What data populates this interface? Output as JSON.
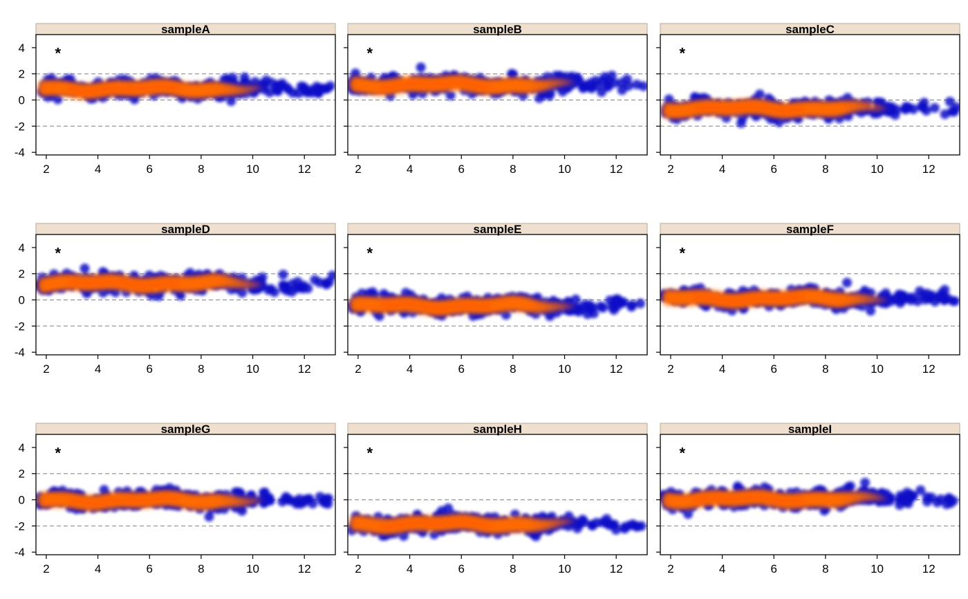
{
  "chart_data": {
    "type": "scatter",
    "subtype": "smoothed-density-scatter (MA-plot style), 3x3 lattice panels",
    "title": "",
    "xlabel": "",
    "ylabel": "",
    "xlim": [
      1.6,
      13.2
    ],
    "ylim": [
      -4.2,
      5.0
    ],
    "x_ticks": [
      2,
      4,
      6,
      8,
      10,
      12
    ],
    "y_ticks": [
      -4,
      -2,
      0,
      2,
      4
    ],
    "reference_lines": [
      -2,
      0,
      2
    ],
    "reference_line_style": "dashed grey",
    "marker": "*",
    "marker_pos": {
      "x": 2.45,
      "y": 3.8
    },
    "density_colors": [
      "#0a12c8",
      "#ff6a00"
    ],
    "strip_color": "#efdfcf",
    "grid": false,
    "layout": {
      "rows": 3,
      "cols": 3
    },
    "panels": [
      {
        "name": "sampleA",
        "center": 0.85,
        "spread": 0.35
      },
      {
        "name": "sampleB",
        "center": 1.15,
        "spread": 0.35
      },
      {
        "name": "sampleC",
        "center": -0.65,
        "spread": 0.35
      },
      {
        "name": "sampleD",
        "center": 1.25,
        "spread": 0.38
      },
      {
        "name": "sampleE",
        "center": -0.45,
        "spread": 0.38
      },
      {
        "name": "sampleF",
        "center": 0.1,
        "spread": 0.33
      },
      {
        "name": "sampleG",
        "center": -0.05,
        "spread": 0.38
      },
      {
        "name": "sampleH",
        "center": -1.85,
        "spread": 0.35
      },
      {
        "name": "sampleI",
        "center": 0.05,
        "spread": 0.38
      }
    ]
  }
}
